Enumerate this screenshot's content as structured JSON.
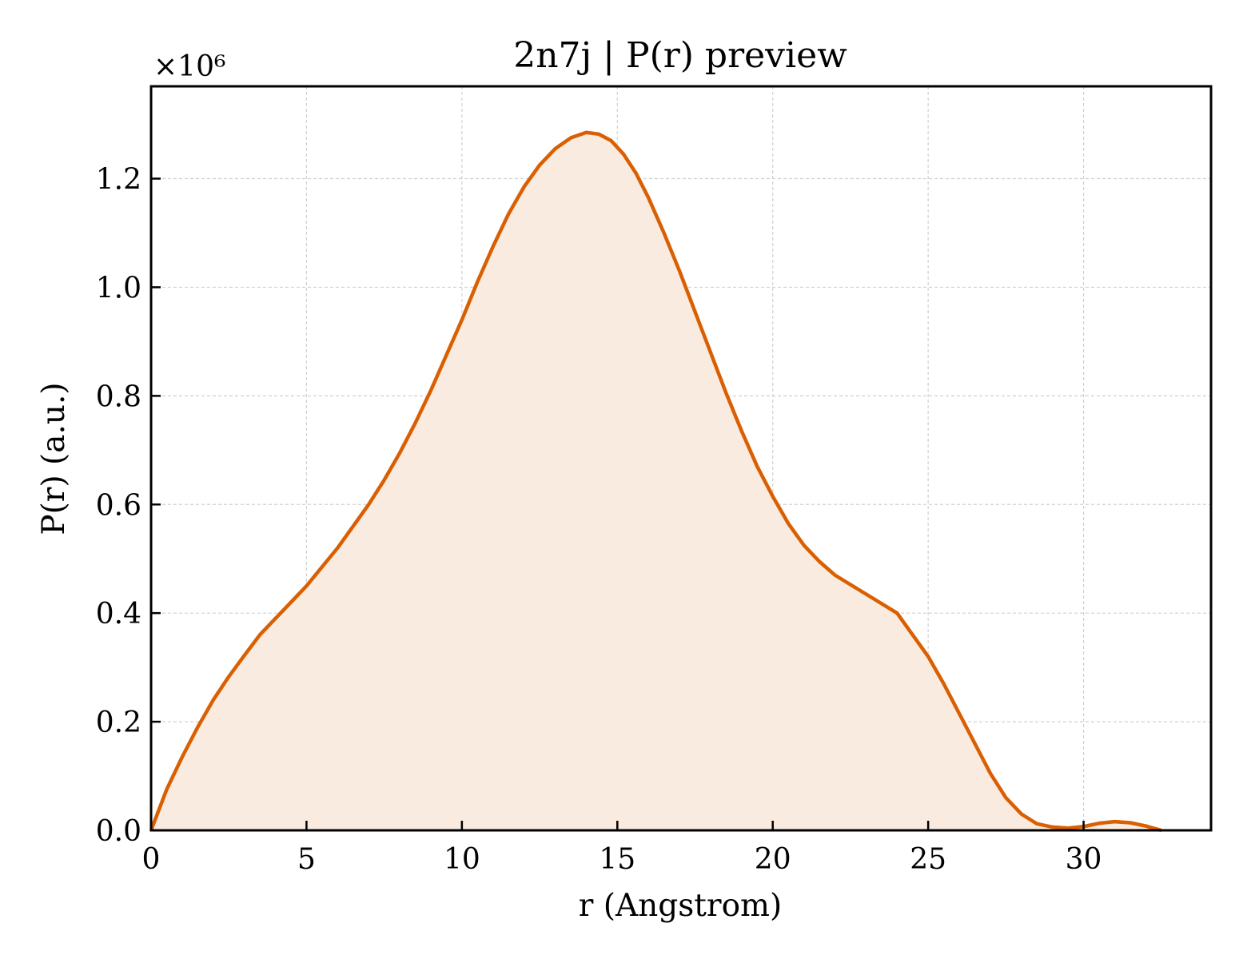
{
  "chart_data": {
    "type": "area",
    "title": "2n7j | P(r) preview",
    "xlabel": "r (Angstrom)",
    "ylabel": "P(r) (a.u.)",
    "y_scale_label": "×10⁶",
    "y_multiplier": 1000000,
    "xlim": [
      0,
      34.1
    ],
    "ylim": [
      0,
      1.37
    ],
    "xticks": [
      0,
      5,
      10,
      15,
      20,
      25,
      30
    ],
    "yticks": [
      0.0,
      0.2,
      0.4,
      0.6,
      0.8,
      1.0,
      1.2
    ],
    "grid": true,
    "line_color": "#d95f02",
    "fill_color": "#f9ebe0",
    "series": [
      {
        "x": [
          0,
          0.5,
          1,
          1.5,
          2,
          2.5,
          3,
          3.5,
          4,
          5,
          6,
          7,
          7.5,
          8,
          8.5,
          9,
          9.5,
          10,
          10.5,
          11,
          11.5,
          12,
          12.5,
          13,
          13.5,
          14,
          14.4,
          14.8,
          15.2,
          15.6,
          16,
          16.5,
          17,
          17.5,
          18,
          18.5,
          19,
          19.5,
          20,
          20.5,
          21,
          21.5,
          22,
          23,
          24,
          25,
          25.5,
          26,
          26.5,
          27,
          27.5,
          28,
          28.5,
          29,
          29.5,
          30,
          30.5,
          31,
          31.5,
          32,
          32.5
        ],
        "y": [
          0.0,
          0.075,
          0.135,
          0.19,
          0.24,
          0.283,
          0.322,
          0.36,
          0.39,
          0.45,
          0.52,
          0.6,
          0.645,
          0.695,
          0.75,
          0.81,
          0.875,
          0.94,
          1.01,
          1.075,
          1.135,
          1.185,
          1.225,
          1.255,
          1.275,
          1.285,
          1.282,
          1.27,
          1.245,
          1.21,
          1.165,
          1.1,
          1.03,
          0.955,
          0.88,
          0.805,
          0.735,
          0.67,
          0.615,
          0.565,
          0.525,
          0.495,
          0.47,
          0.435,
          0.4,
          0.32,
          0.27,
          0.215,
          0.16,
          0.105,
          0.06,
          0.03,
          0.012,
          0.006,
          0.004,
          0.007,
          0.013,
          0.016,
          0.014,
          0.008,
          0.0
        ]
      }
    ]
  }
}
